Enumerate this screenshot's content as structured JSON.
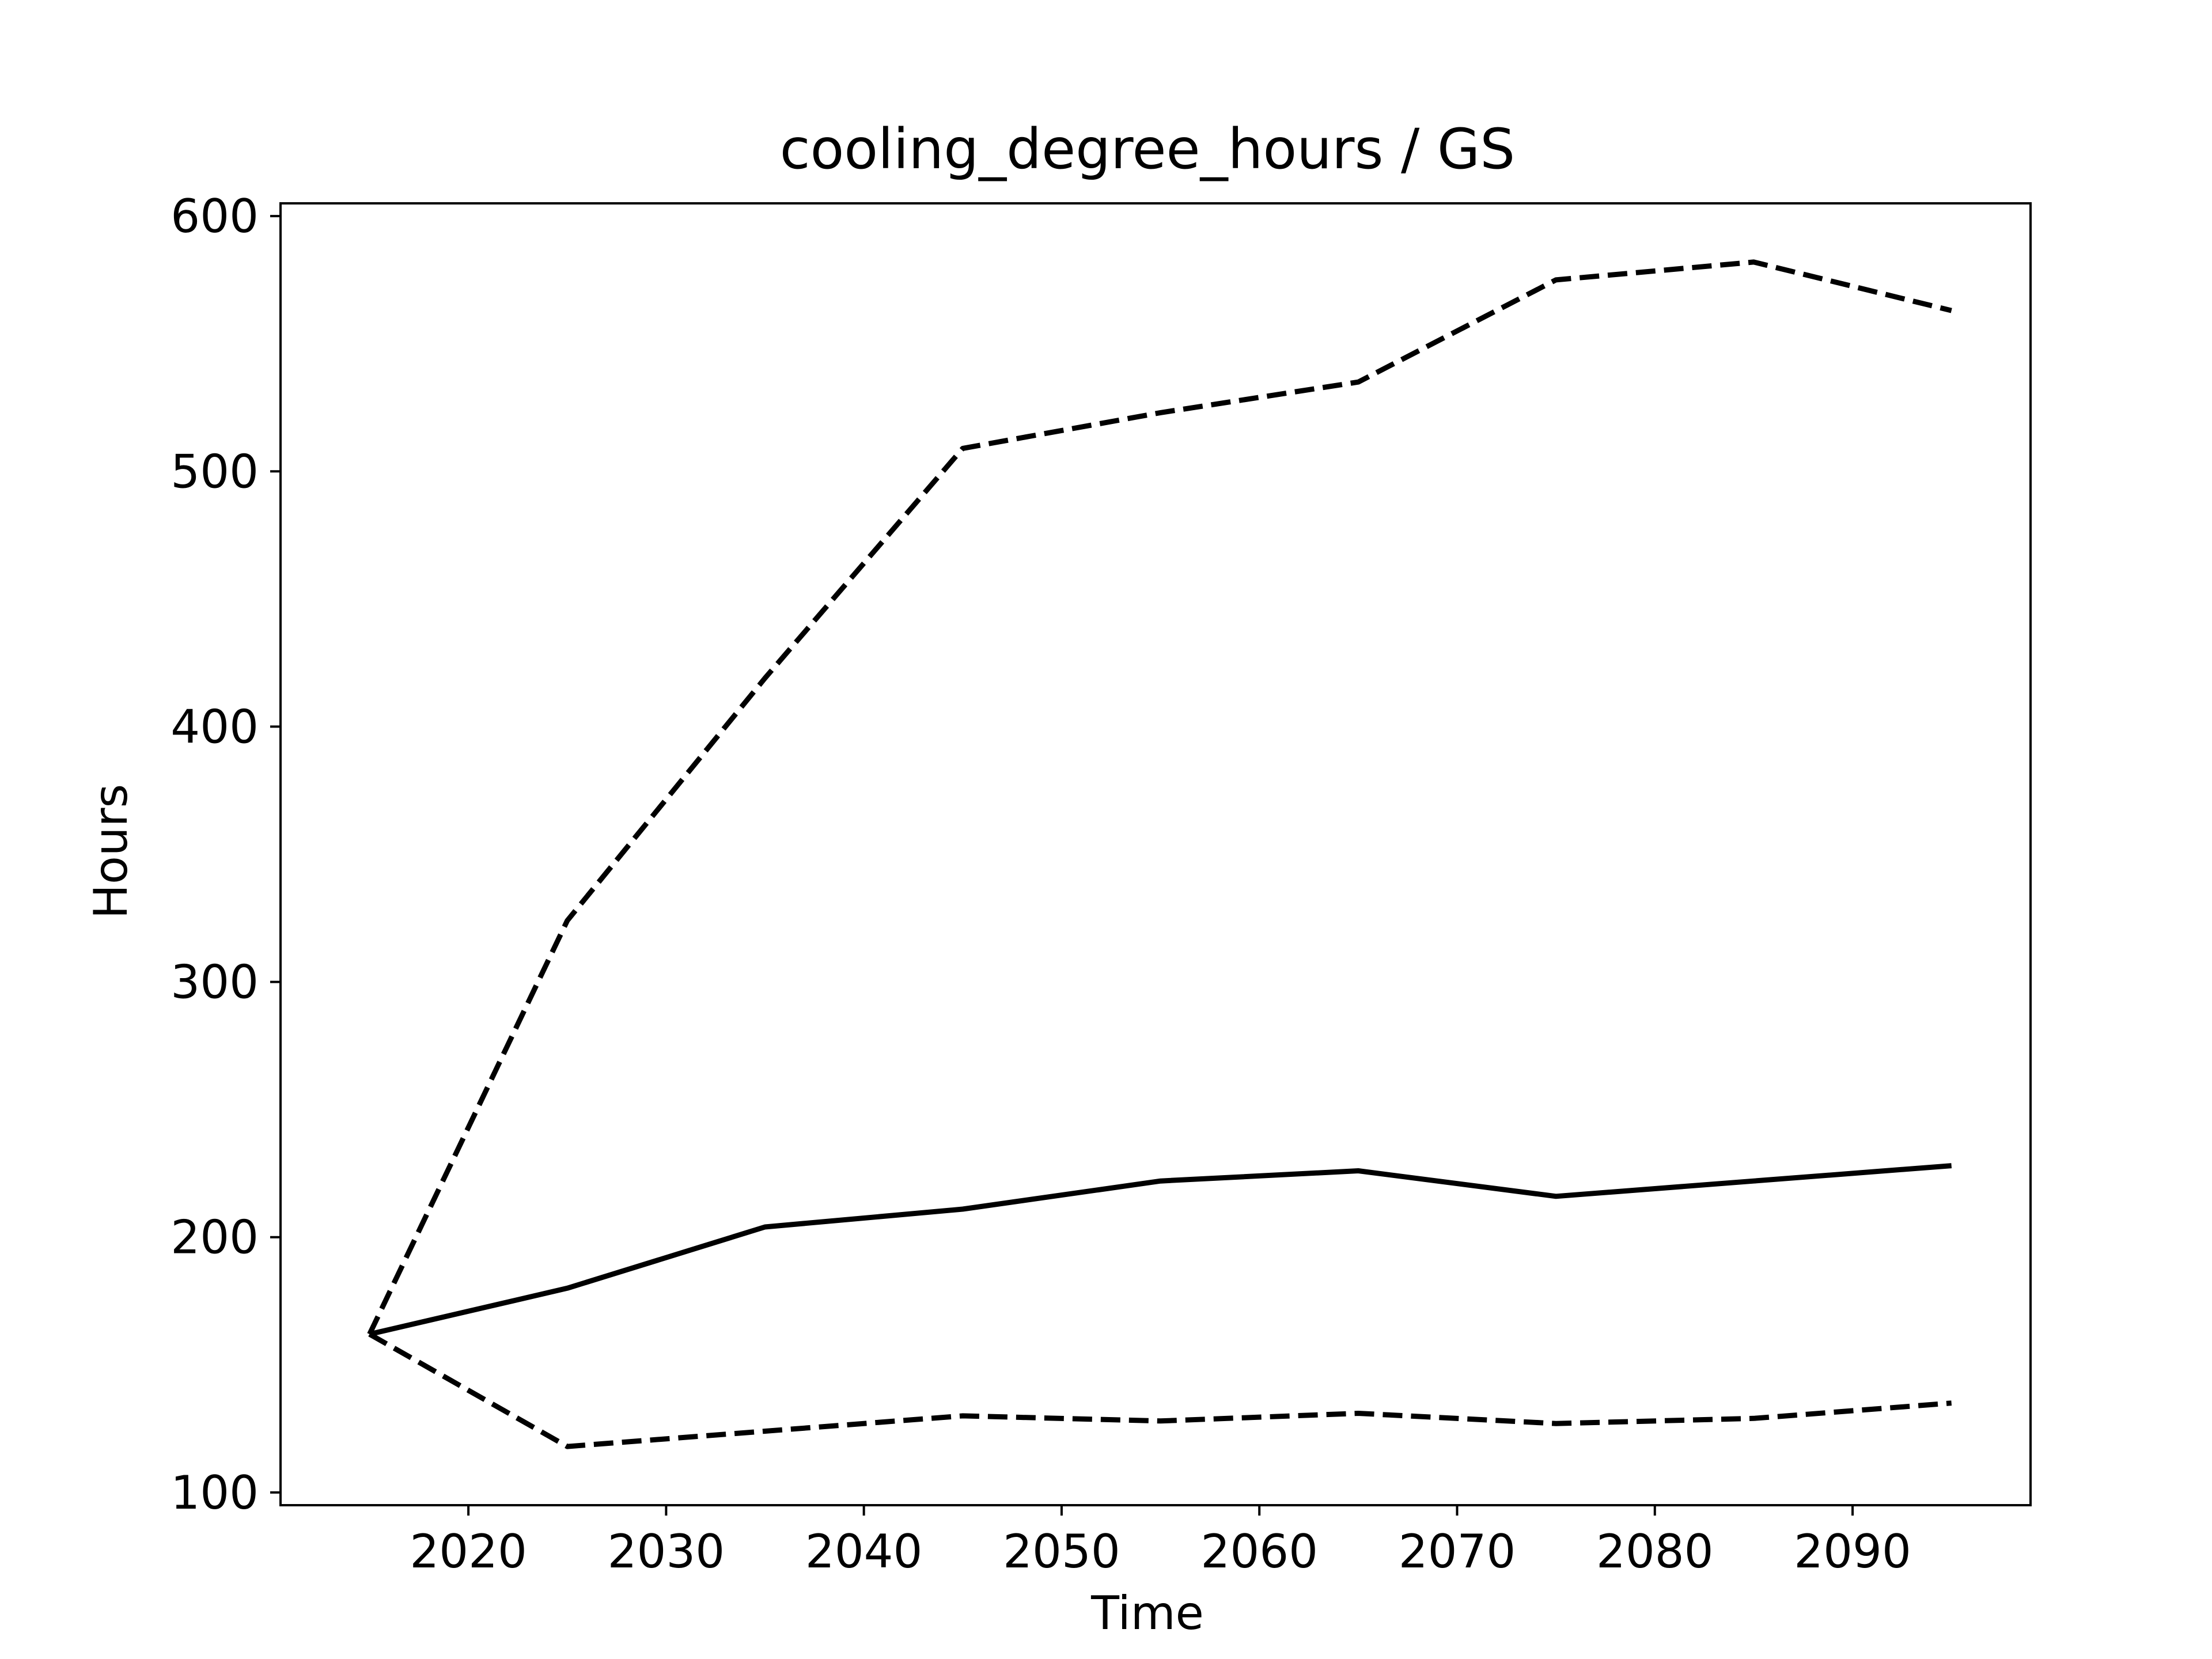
{
  "chart_data": {
    "type": "line",
    "title": "cooling_degree_hours / GS",
    "xlabel": "Time",
    "ylabel": "Hours",
    "xlim": [
      2010.5,
      2099
    ],
    "ylim": [
      95,
      605
    ],
    "xticks": [
      2020,
      2030,
      2040,
      2050,
      2060,
      2070,
      2080,
      2090
    ],
    "yticks": [
      100,
      200,
      300,
      400,
      500,
      600
    ],
    "grid": false,
    "x": [
      2015,
      2025,
      2035,
      2045,
      2055,
      2065,
      2075,
      2085,
      2095
    ],
    "series": [
      {
        "style": "solid",
        "color": "#000000",
        "values": [
          162,
          180,
          204,
          211,
          222,
          226,
          216,
          222,
          228
        ]
      },
      {
        "style": "dashed",
        "color": "#000000",
        "values": [
          162,
          324,
          419,
          509,
          523,
          535,
          575,
          582,
          563
        ]
      },
      {
        "style": "dashed",
        "color": "#000000",
        "values": [
          162,
          118,
          124,
          130,
          128,
          131,
          127,
          129,
          135
        ]
      }
    ]
  }
}
